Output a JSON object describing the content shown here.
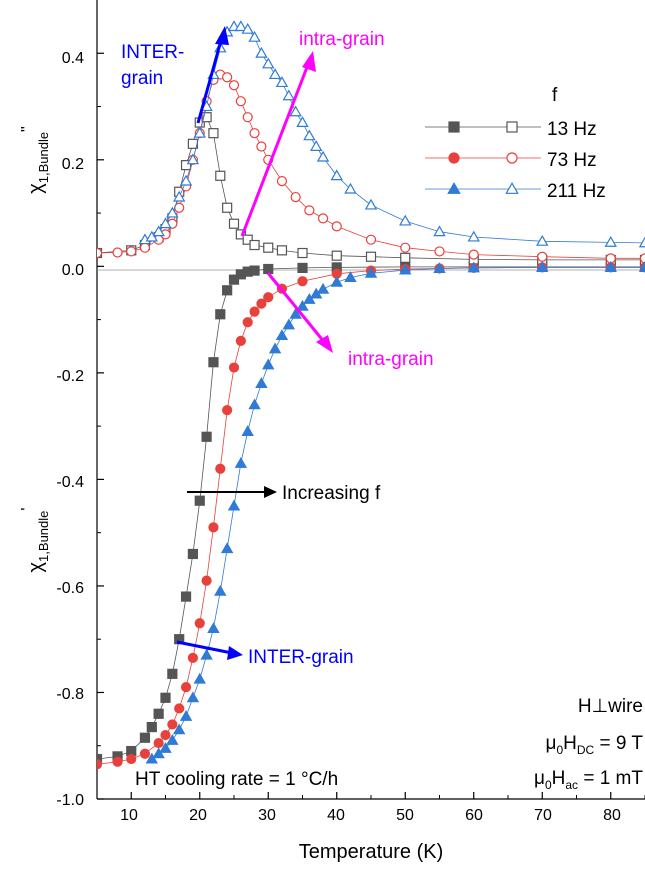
{
  "chart_data": {
    "type": "scatter",
    "xlabel": "Temperature (K)",
    "ylabel_upper": {
      "main": "χ",
      "sub": "1,Bundle",
      "sup": "\""
    },
    "ylabel_lower": {
      "main": "χ",
      "sub": "1,Bundle",
      "sup": "'"
    },
    "xlim": [
      5,
      85
    ],
    "ylim": [
      -1.0,
      0.5
    ],
    "x_ticks": [
      "10",
      "20",
      "30",
      "40",
      "50",
      "60",
      "70",
      "80"
    ],
    "x_tick_values": [
      10,
      20,
      30,
      40,
      50,
      60,
      70,
      80
    ],
    "y_ticks": [
      "0.4",
      "0.2",
      "0.0",
      "-0.2",
      "-0.4",
      "-0.6",
      "-0.8",
      "-1.0"
    ],
    "y_tick_values": [
      0.4,
      0.2,
      0.0,
      -0.2,
      -0.4,
      -0.6,
      -0.8,
      -1.0
    ],
    "zero_line": true,
    "grid": false,
    "legend": {
      "title": "f",
      "placement": "top-right",
      "entries": [
        {
          "label": "13 Hz",
          "color": "#555555",
          "marker": "square"
        },
        {
          "label": "73 Hz",
          "color": "#e8413c",
          "marker": "circle"
        },
        {
          "label": "211 Hz",
          "color": "#2f7bd6",
          "marker": "triangle"
        }
      ]
    },
    "series": [
      {
        "name": "13 Hz",
        "component": "chi_real",
        "color": "#555555",
        "marker": "square",
        "filled": true,
        "x": [
          5,
          8,
          10,
          12,
          13,
          14,
          15,
          16,
          17,
          18,
          19,
          20,
          21,
          22,
          23,
          24,
          25,
          26,
          27,
          28,
          30,
          35,
          40,
          50,
          60,
          70,
          80,
          85
        ],
        "y": [
          -0.925,
          -0.92,
          -0.91,
          -0.885,
          -0.865,
          -0.84,
          -0.81,
          -0.765,
          -0.7,
          -0.62,
          -0.54,
          -0.44,
          -0.32,
          -0.18,
          -0.09,
          -0.045,
          -0.025,
          -0.015,
          -0.01,
          -0.008,
          -0.005,
          -0.003,
          -0.002,
          -0.001,
          -0.001,
          -0.001,
          -0.001,
          -0.001
        ]
      },
      {
        "name": "13 Hz",
        "component": "chi_imag",
        "color": "#555555",
        "marker": "square",
        "filled": false,
        "x": [
          5,
          10,
          12,
          14,
          15,
          16,
          17,
          18,
          19,
          20,
          21,
          22,
          23,
          24,
          25,
          26,
          27,
          28,
          30,
          32,
          35,
          40,
          45,
          50,
          60,
          70,
          80,
          85
        ],
        "y": [
          0.025,
          0.03,
          0.04,
          0.055,
          0.07,
          0.09,
          0.14,
          0.19,
          0.23,
          0.27,
          0.28,
          0.25,
          0.17,
          0.11,
          0.08,
          0.06,
          0.05,
          0.04,
          0.035,
          0.03,
          0.025,
          0.02,
          0.018,
          0.016,
          0.013,
          0.012,
          0.012,
          0.012
        ]
      },
      {
        "name": "73 Hz",
        "component": "chi_real",
        "color": "#e8413c",
        "marker": "circle",
        "filled": true,
        "x": [
          5,
          8,
          10,
          12,
          14,
          15,
          16,
          17,
          18,
          19,
          20,
          21,
          22,
          23,
          24,
          25,
          26,
          27,
          28,
          29,
          30,
          32,
          35,
          40,
          45,
          50,
          55,
          60,
          70,
          80,
          85
        ],
        "y": [
          -0.935,
          -0.93,
          -0.925,
          -0.915,
          -0.895,
          -0.88,
          -0.86,
          -0.83,
          -0.79,
          -0.735,
          -0.67,
          -0.59,
          -0.49,
          -0.38,
          -0.27,
          -0.19,
          -0.14,
          -0.105,
          -0.085,
          -0.07,
          -0.058,
          -0.042,
          -0.028,
          -0.014,
          -0.008,
          -0.005,
          -0.004,
          -0.003,
          -0.002,
          -0.002,
          -0.002
        ]
      },
      {
        "name": "73 Hz",
        "component": "chi_imag",
        "color": "#e8413c",
        "marker": "circle",
        "filled": false,
        "x": [
          5,
          8,
          10,
          12,
          14,
          15,
          16,
          17,
          18,
          19,
          20,
          21,
          22,
          23,
          24,
          25,
          26,
          27,
          28,
          29,
          30,
          32,
          34,
          36,
          38,
          40,
          45,
          50,
          55,
          60,
          70,
          80,
          85
        ],
        "y": [
          0.025,
          0.026,
          0.028,
          0.035,
          0.05,
          0.06,
          0.08,
          0.11,
          0.15,
          0.2,
          0.25,
          0.31,
          0.35,
          0.36,
          0.355,
          0.34,
          0.31,
          0.28,
          0.25,
          0.225,
          0.2,
          0.16,
          0.13,
          0.105,
          0.09,
          0.075,
          0.05,
          0.035,
          0.028,
          0.022,
          0.018,
          0.015,
          0.015
        ]
      },
      {
        "name": "211 Hz",
        "component": "chi_real",
        "color": "#2f7bd6",
        "marker": "triangle",
        "filled": true,
        "x": [
          13,
          14,
          15,
          16,
          17,
          18,
          19,
          20,
          21,
          22,
          23,
          24,
          25,
          26,
          27,
          28,
          29,
          30,
          31,
          32,
          33,
          34,
          35,
          36,
          37,
          38,
          40,
          42,
          45,
          50,
          55,
          60,
          70,
          80,
          85
        ],
        "y": [
          -0.925,
          -0.915,
          -0.905,
          -0.89,
          -0.87,
          -0.845,
          -0.81,
          -0.775,
          -0.73,
          -0.68,
          -0.61,
          -0.53,
          -0.45,
          -0.37,
          -0.31,
          -0.26,
          -0.22,
          -0.185,
          -0.155,
          -0.13,
          -0.11,
          -0.09,
          -0.075,
          -0.062,
          -0.052,
          -0.043,
          -0.03,
          -0.021,
          -0.013,
          -0.007,
          -0.004,
          -0.003,
          -0.002,
          -0.002,
          -0.002
        ]
      },
      {
        "name": "211 Hz",
        "component": "chi_imag",
        "color": "#2f7bd6",
        "marker": "triangle",
        "filled": false,
        "x": [
          12,
          13,
          14,
          15,
          16,
          17,
          18,
          19,
          20,
          21,
          22,
          23,
          24,
          25,
          26,
          27,
          28,
          29,
          30,
          31,
          32,
          33,
          34,
          35,
          36,
          37,
          38,
          40,
          42,
          45,
          50,
          55,
          60,
          70,
          80,
          85
        ],
        "y": [
          0.05,
          0.055,
          0.065,
          0.08,
          0.1,
          0.13,
          0.16,
          0.2,
          0.25,
          0.3,
          0.36,
          0.41,
          0.44,
          0.45,
          0.45,
          0.445,
          0.43,
          0.4,
          0.38,
          0.36,
          0.345,
          0.32,
          0.29,
          0.27,
          0.245,
          0.225,
          0.205,
          0.17,
          0.145,
          0.115,
          0.085,
          0.065,
          0.055,
          0.047,
          0.045,
          0.044
        ]
      }
    ],
    "annotations": [
      {
        "text": "INTER-",
        "color": "#0000ff"
      },
      {
        "text": "grain",
        "color": "#0000ff"
      },
      {
        "text": "intra-grain",
        "color": "#ff00ff"
      },
      {
        "text": "intra-grain",
        "color": "#ff00ff"
      },
      {
        "text": "Increasing f",
        "color": "#000000"
      },
      {
        "text": "INTER-grain",
        "color": "#0000ff"
      },
      {
        "text": "H⊥wire",
        "color": "#000000"
      },
      {
        "text": "HT cooling rate = 1 °C/h",
        "color": "#000000"
      }
    ],
    "field_labels": {
      "dc": {
        "mu": "μ",
        "sub_0": "0",
        "H": "H",
        "sub": "DC",
        "rest": " = 9 T"
      },
      "ac": {
        "mu": "μ",
        "sub_0": "0",
        "H": "H",
        "sub": "ac",
        "rest": " = 1 mT"
      }
    }
  }
}
